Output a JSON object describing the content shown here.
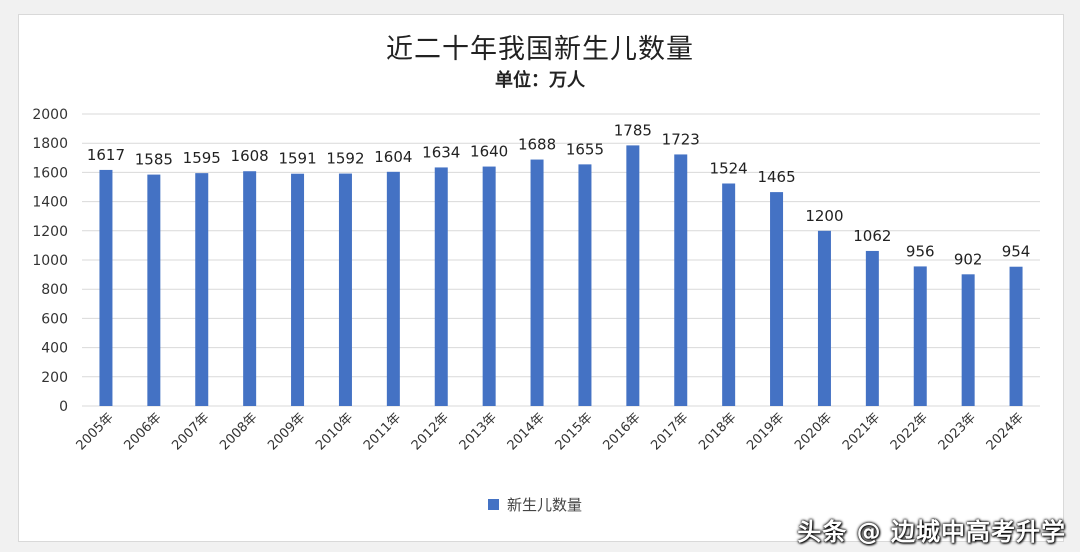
{
  "chart_data": {
    "type": "bar",
    "title": "近二十年我国新生儿数量",
    "subtitle": "单位：万人",
    "categories": [
      "2005年",
      "2006年",
      "2007年",
      "2008年",
      "2009年",
      "2010年",
      "2011年",
      "2012年",
      "2013年",
      "2014年",
      "2015年",
      "2016年",
      "2017年",
      "2018年",
      "2019年",
      "2020年",
      "2021年",
      "2022年",
      "2023年",
      "2024年"
    ],
    "series": [
      {
        "name": "新生儿数量",
        "values": [
          1617,
          1585,
          1595,
          1608,
          1591,
          1592,
          1604,
          1634,
          1640,
          1688,
          1655,
          1785,
          1723,
          1524,
          1465,
          1200,
          1062,
          956,
          902,
          954
        ]
      }
    ],
    "ylim": [
      0,
      2000
    ],
    "yticks": [
      0,
      200,
      400,
      600,
      800,
      1000,
      1200,
      1400,
      1600,
      1800,
      2000
    ],
    "grid": true,
    "legend_position": "bottom",
    "bar_color": "#4472c4"
  },
  "watermark": "头条 @ 边城中高考升学"
}
